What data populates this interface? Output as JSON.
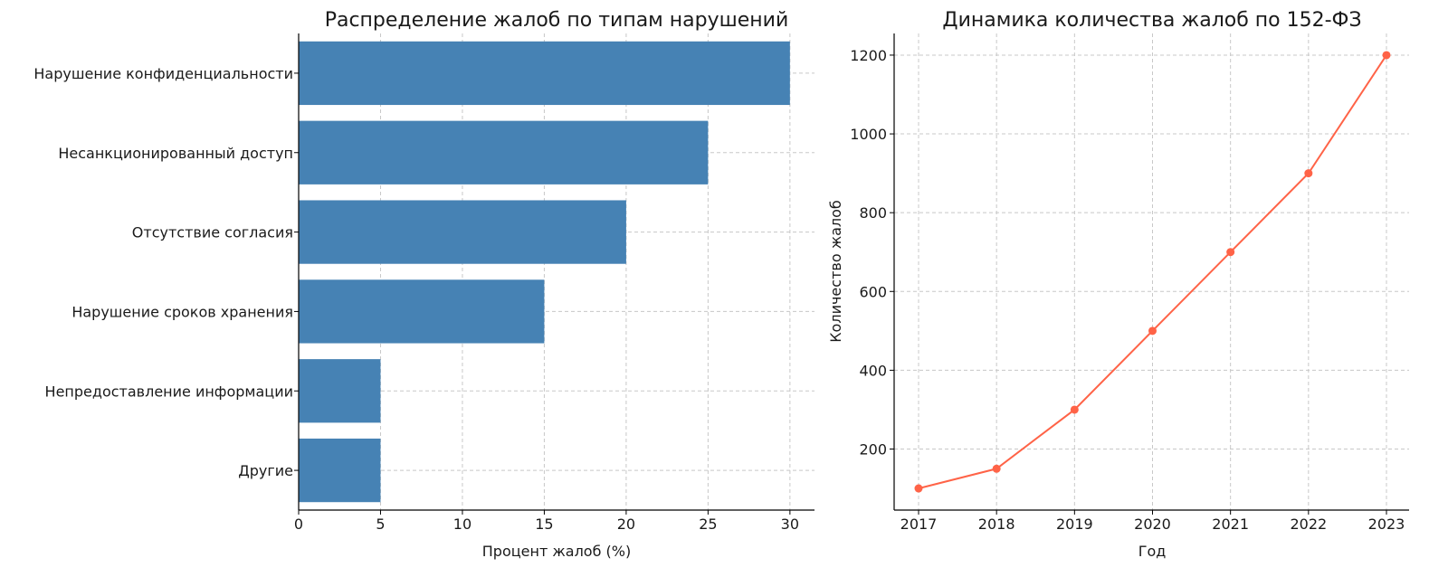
{
  "chart_data": [
    {
      "type": "bar",
      "orientation": "horizontal",
      "title": "Распределение жалоб по типам нарушений",
      "xlabel": "Процент жалоб (%)",
      "ylabel": "",
      "categories": [
        "Нарушение конфиденциальности",
        "Несанкционированный доступ",
        "Отсутствие согласия",
        "Нарушение сроков хранения",
        "Непредоставление информации",
        "Другие"
      ],
      "values": [
        30,
        25,
        20,
        15,
        5,
        5
      ],
      "xlim": [
        0,
        31.5
      ],
      "xticks": [
        "0",
        "5",
        "10",
        "15",
        "20",
        "25",
        "30"
      ],
      "grid": true,
      "bar_color": "#4682B4"
    },
    {
      "type": "line",
      "title": "Динамика количества жалоб по 152-ФЗ",
      "xlabel": "Год",
      "ylabel": "Количество жалоб",
      "x": [
        "2017",
        "2018",
        "2019",
        "2020",
        "2021",
        "2022",
        "2023"
      ],
      "values": [
        100,
        150,
        300,
        500,
        700,
        900,
        1200
      ],
      "ylim": [
        45,
        1255
      ],
      "yticks": [
        "200",
        "400",
        "600",
        "800",
        "1000",
        "1200"
      ],
      "grid": true,
      "line_color": "#FF6347"
    }
  ]
}
